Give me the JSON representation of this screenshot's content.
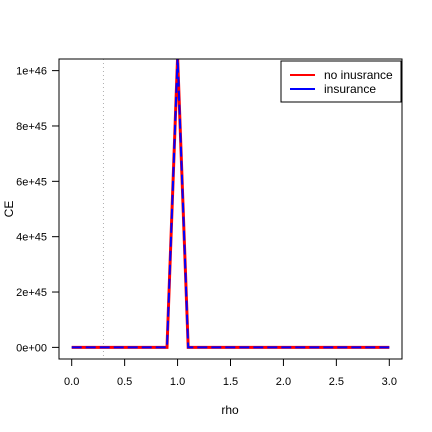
{
  "chart_data": {
    "type": "line",
    "xlabel": "rho",
    "ylabel": "CE",
    "xlim": [
      -0.12,
      3.12
    ],
    "ylim": [
      -4.2e+44,
      1.042e+46
    ],
    "x_ticks": [
      {
        "value": 0.0,
        "label": "0.0"
      },
      {
        "value": 0.5,
        "label": "0.5"
      },
      {
        "value": 1.0,
        "label": "1.0"
      },
      {
        "value": 1.5,
        "label": "1.5"
      },
      {
        "value": 2.0,
        "label": "2.0"
      },
      {
        "value": 2.5,
        "label": "2.5"
      },
      {
        "value": 3.0,
        "label": "3.0"
      }
    ],
    "y_ticks": [
      {
        "value": 0,
        "label": "0e+00"
      },
      {
        "value": 2e+45,
        "label": "2e+45"
      },
      {
        "value": 4e+45,
        "label": "4e+45"
      },
      {
        "value": 6e+45,
        "label": "6e+45"
      },
      {
        "value": 8e+45,
        "label": "8e+45"
      },
      {
        "value": 1e+46,
        "label": "1e+46"
      }
    ],
    "reference_line": {
      "axis": "x",
      "value": 0.3,
      "style": "dotted",
      "color": "#b0b0b0"
    },
    "legend_position": "top-right",
    "series": [
      {
        "name": "no inusrance",
        "color": "#ff0000",
        "x": [
          0.0,
          0.9,
          1.0,
          1.1,
          3.0
        ],
        "y": [
          0,
          0,
          1.05e+46,
          0,
          0
        ]
      },
      {
        "name": "insurance",
        "color": "#0000ff",
        "x": [
          0.0,
          0.9,
          1.0,
          1.1,
          3.0
        ],
        "y": [
          0,
          0,
          1.05e+46,
          0,
          0
        ]
      }
    ]
  }
}
